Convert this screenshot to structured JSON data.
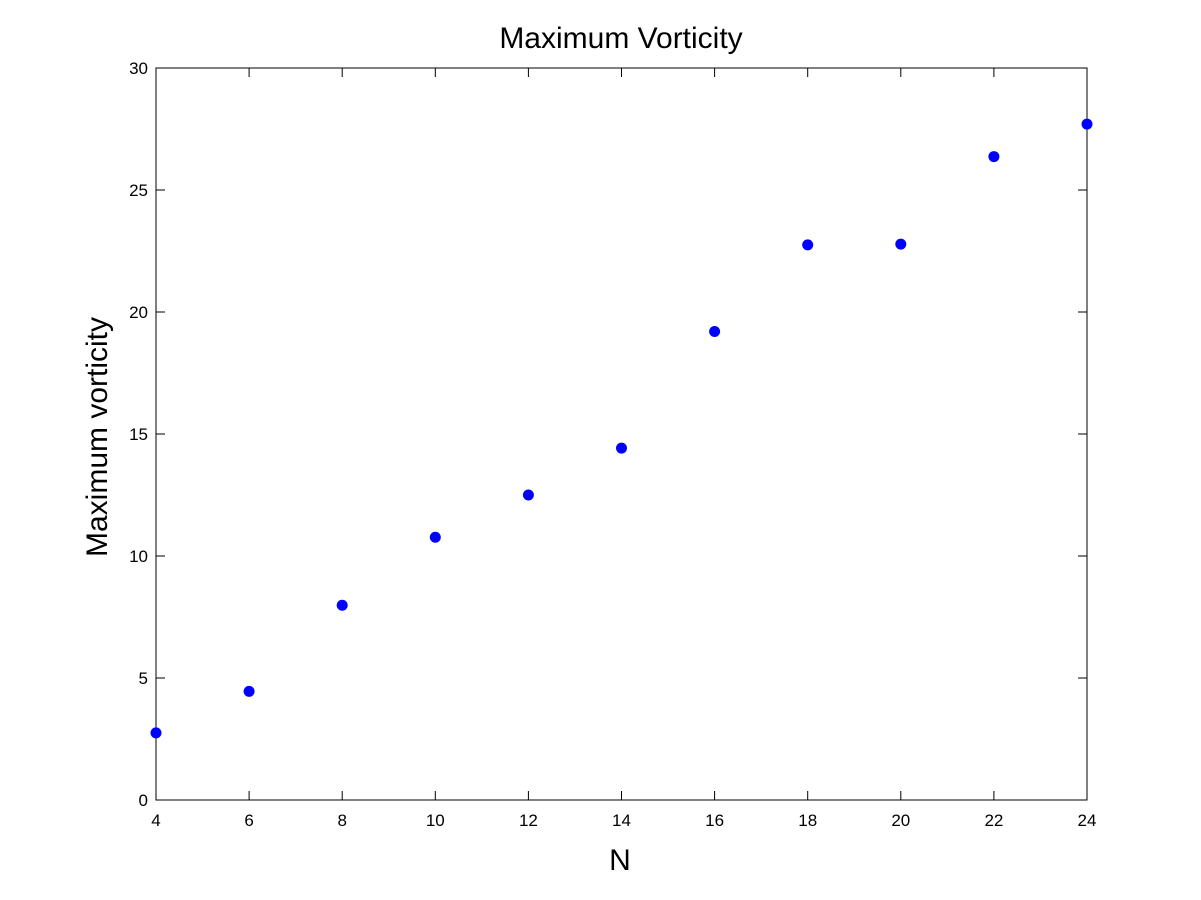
{
  "chart_data": {
    "type": "scatter",
    "title": "Maximum Vorticity",
    "xlabel": "N",
    "ylabel": "Maximum vorticity",
    "xlim": [
      4,
      24
    ],
    "ylim": [
      0,
      30
    ],
    "xticks": [
      4,
      6,
      8,
      10,
      12,
      14,
      16,
      18,
      20,
      22,
      24
    ],
    "yticks": [
      0,
      5,
      10,
      15,
      20,
      25,
      30
    ],
    "grid": false,
    "marker_color": "#0000ff",
    "series": [
      {
        "name": "Maximum vorticity",
        "x": [
          4,
          6,
          8,
          10,
          12,
          14,
          16,
          18,
          20,
          22,
          24
        ],
        "y": [
          2.75,
          4.45,
          7.98,
          10.77,
          12.5,
          14.42,
          19.2,
          22.75,
          22.78,
          26.37,
          27.7
        ]
      }
    ]
  }
}
